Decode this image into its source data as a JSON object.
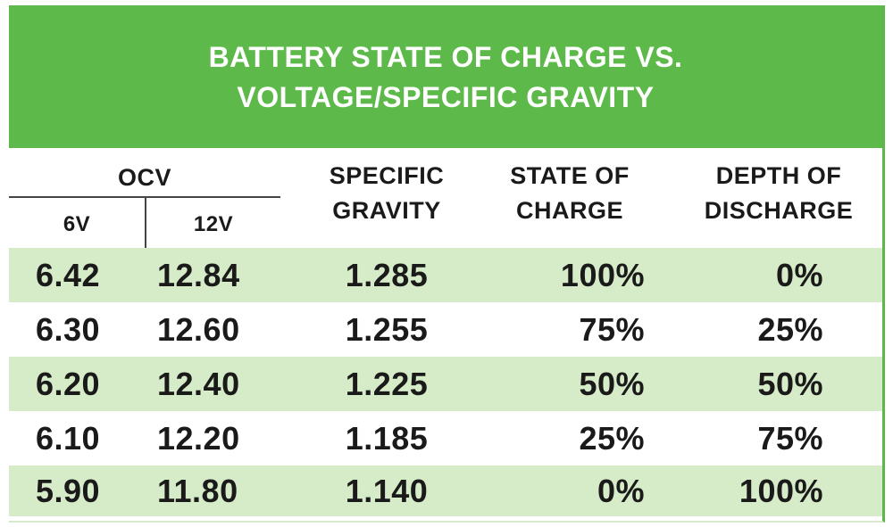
{
  "title": "BATTERY STATE OF CHARGE VS. VOLTAGE/SPECIFIC GRAVITY",
  "headers": {
    "ocv": "OCV",
    "v6": "6V",
    "v12": "12V",
    "specific_gravity": "SPECIFIC GRAVITY",
    "state_of_charge": "STATE OF CHARGE",
    "depth_of_discharge": "DEPTH OF DISCHARGE"
  },
  "rows": [
    {
      "v6": "6.42",
      "v12": "12.84",
      "sg": "1.285",
      "soc": "100%",
      "dod": "0%"
    },
    {
      "v6": "6.30",
      "v12": "12.60",
      "sg": "1.255",
      "soc": "75%",
      "dod": "25%"
    },
    {
      "v6": "6.20",
      "v12": "12.40",
      "sg": "1.225",
      "soc": "50%",
      "dod": "50%"
    },
    {
      "v6": "6.10",
      "v12": "12.20",
      "sg": "1.185",
      "soc": "25%",
      "dod": "75%"
    },
    {
      "v6": "5.90",
      "v12": "11.80",
      "sg": "1.140",
      "soc": "0%",
      "dod": "100%"
    }
  ],
  "colors": {
    "accent_green": "#5dba4a",
    "row_tint": "#d6ebc7"
  }
}
